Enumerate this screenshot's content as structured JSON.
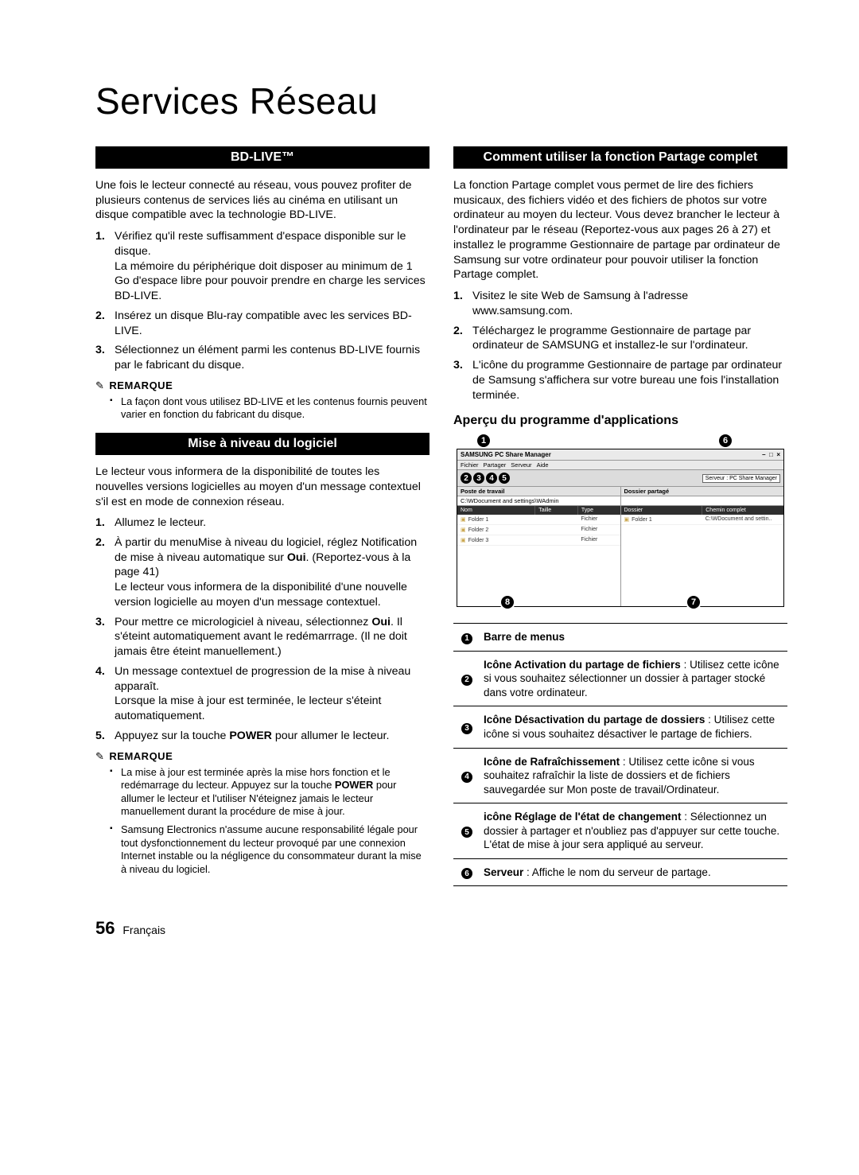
{
  "page": {
    "title": "Services Réseau",
    "page_number": "56",
    "lang_label": "Français"
  },
  "left": {
    "bdlive_header": "BD-LIVE™",
    "bdlive_intro": "Une fois le lecteur connecté au réseau, vous pouvez profiter de plusieurs contenus de services liés au cinéma en utilisant un disque compatible avec la technologie BD-LIVE.",
    "bdlive_steps": [
      "Vérifiez qu'il reste suffisamment d'espace disponible sur le disque.\nLa mémoire du périphérique doit disposer au minimum de 1 Go d'espace libre pour pouvoir prendre en charge les services BD-LIVE.",
      "Insérez un disque Blu-ray compatible avec les services BD-LIVE.",
      "Sélectionnez un élément parmi les contenus BD-LIVE fournis par le fabricant du disque."
    ],
    "remarque_label": "REMARQUE",
    "bdlive_note": "La façon dont vous utilisez BD-LIVE et les contenus fournis peuvent varier en fonction du fabricant du disque.",
    "maj_header": "Mise à niveau du logiciel",
    "maj_intro": "Le lecteur vous informera de la disponibilité de toutes les nouvelles versions logicielles au moyen d'un message contextuel s'il est en mode de connexion réseau.",
    "maj_steps": [
      "Allumez le lecteur.",
      "À partir du menuMise à niveau du logiciel, réglez Notification de mise à niveau automatique sur <b>Oui</b>. (Reportez-vous à la page 41)\nLe lecteur vous informera de la disponibilité d'une nouvelle version logicielle au moyen d'un message contextuel.",
      "Pour mettre ce micrologiciel à niveau, sélectionnez <b>Oui</b>. Il s'éteint automatiquement avant le redémarrrage. (Il ne doit jamais être éteint manuellement.)",
      "Un message contextuel de progression de la mise à niveau apparaît.\nLorsque la mise à jour est terminée, le lecteur s'éteint automatiquement.",
      "Appuyez sur la touche <b>POWER</b> pour allumer le lecteur."
    ],
    "maj_notes": [
      "La mise à jour est terminée après la mise hors fonction et le redémarrage du lecteur. Appuyez sur la touche <b>POWER</b> pour allumer le lecteur et l'utiliser N'éteignez jamais le lecteur manuellement durant la procédure de mise à jour.",
      "Samsung Electronics n'assume aucune responsabilité légale pour tout dysfonctionnement du lecteur provoqué par une connexion Internet instable ou la négligence du consommateur durant la mise à niveau du logiciel."
    ]
  },
  "right": {
    "partage_header": "Comment utiliser la fonction Partage complet",
    "partage_intro": "La fonction Partage complet vous permet de lire des fichiers musicaux, des fichiers vidéo et des fichiers de photos sur votre ordinateur au moyen du lecteur. Vous devez brancher le lecteur à l'ordinateur par le réseau (Reportez-vous aux pages 26 à 27) et installez le programme Gestionnaire de partage par ordinateur de Samsung sur votre ordinateur pour pouvoir utiliser la fonction Partage complet.",
    "partage_steps": [
      "Visitez le site Web de Samsung à l'adresse www.samsung.com.",
      "Téléchargez le programme Gestionnaire de partage par ordinateur de SAMSUNG et installez-le sur l'ordinateur.",
      "L'icône du programme Gestionnaire de partage par ordinateur de Samsung s'affichera sur votre bureau une fois l'installation terminée."
    ],
    "apercu_header": "Aperçu du programme d'applications",
    "app": {
      "title": "SAMSUNG PC Share Manager",
      "menus": [
        "Fichier",
        "Partager",
        "Serveur",
        "Aide"
      ],
      "server_label": "Serveur : PC Share Manager",
      "left_pane_label": "Poste de travail",
      "path": "C:\\WDocument and settings\\WAdmin",
      "right_pane_label": "Dossier partagé",
      "cols_left": {
        "name": "Nom",
        "size": "Taille",
        "type": "Type"
      },
      "cols_right": {
        "folder": "Dossier",
        "path": "Chemin complet"
      },
      "rows_left": [
        {
          "name": "Folder 1",
          "type": "Fichier"
        },
        {
          "name": "Folder 2",
          "type": "Fichier"
        },
        {
          "name": "Folder 3",
          "type": "Fichier"
        }
      ],
      "row_right": {
        "name": "Folder 1",
        "path": "C:\\WDocument and settin.."
      }
    },
    "legend": [
      {
        "n": "1",
        "html": "<b>Barre de menus</b>"
      },
      {
        "n": "2",
        "html": "<b>Icône Activation du partage de fichiers</b> : Utilisez cette icône si vous souhaitez sélectionner un dossier à partager stocké dans votre ordinateur."
      },
      {
        "n": "3",
        "html": "<b>Icône Désactivation du partage de dossiers</b> : Utilisez cette icône si vous souhaitez désactiver le partage de fichiers."
      },
      {
        "n": "4",
        "html": "<b>Icône de Rafraîchissement</b> : Utilisez cette icône si vous souhaitez rafraîchir la liste de dossiers et de fichiers sauvegardée sur Mon poste de travail/Ordinateur."
      },
      {
        "n": "5",
        "html": "<b>icône Réglage de l'état de changement</b> : Sélectionnez un dossier à partager et n'oubliez pas d'appuyer sur cette touche. L'état de mise à jour sera appliqué au serveur."
      },
      {
        "n": "6",
        "html": "<b>Serveur</b> : Affiche le nom du serveur de partage."
      }
    ]
  }
}
